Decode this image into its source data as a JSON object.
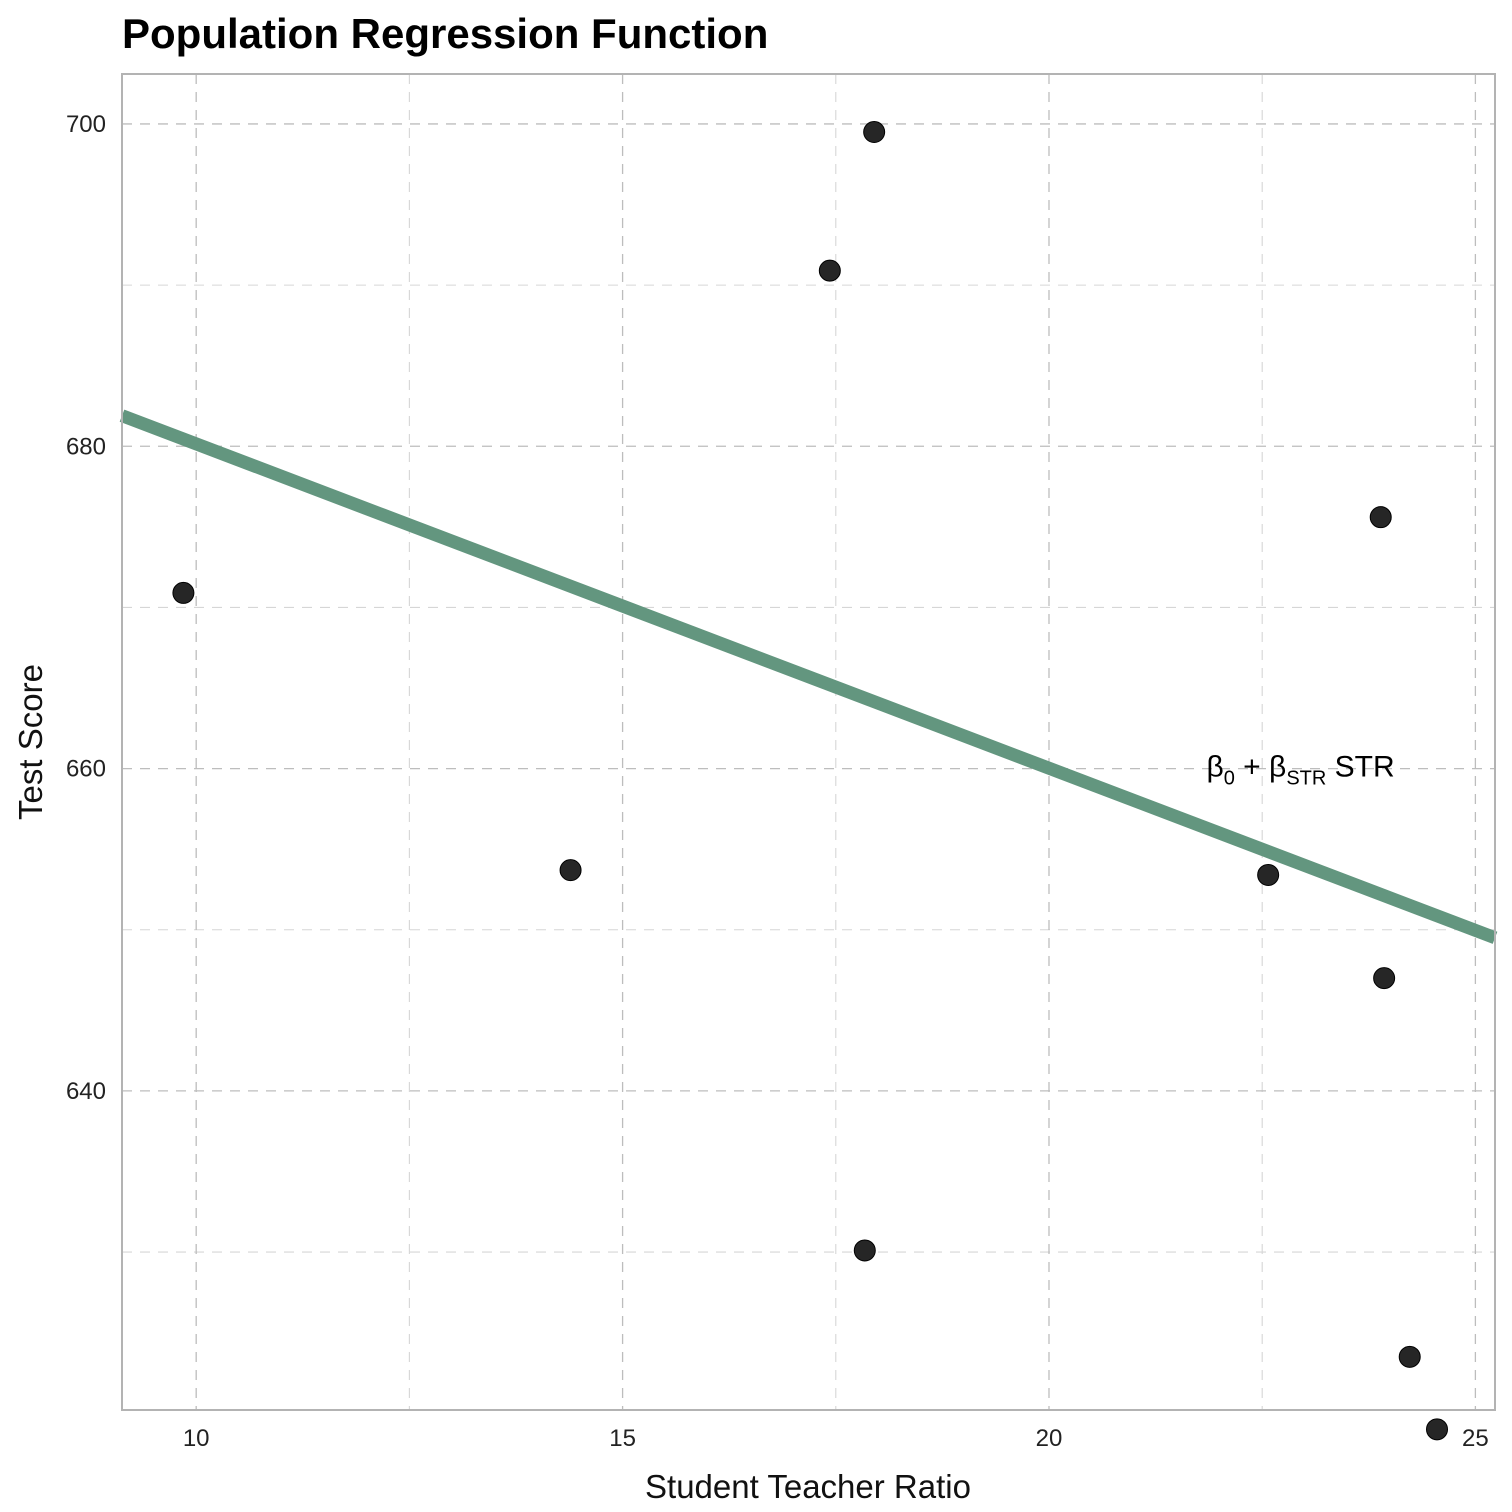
{
  "chart_data": {
    "type": "scatter",
    "title": "Population Regression Function",
    "xlabel": "Student Teacher Ratio",
    "ylabel": "Test Score",
    "xlim": [
      9.13,
      25.23
    ],
    "ylim": [
      620.2,
      703.1
    ],
    "x_ticks": [
      10,
      15,
      20,
      25
    ],
    "y_ticks": [
      640,
      660,
      680,
      700
    ],
    "x_minor_ticks": [
      12.5,
      17.5,
      22.5
    ],
    "y_minor_ticks": [
      630,
      650,
      670,
      690
    ],
    "grid": true,
    "points": [
      {
        "x": 9.85,
        "y": 670.9
      },
      {
        "x": 14.39,
        "y": 653.7
      },
      {
        "x": 17.43,
        "y": 690.9
      },
      {
        "x": 17.95,
        "y": 699.5
      },
      {
        "x": 17.84,
        "y": 630.1
      },
      {
        "x": 22.57,
        "y": 653.4
      },
      {
        "x": 23.89,
        "y": 675.6
      },
      {
        "x": 23.93,
        "y": 647.0
      },
      {
        "x": 24.23,
        "y": 623.5
      },
      {
        "x": 24.55,
        "y": 619.0
      }
    ],
    "line": {
      "x1": 9.13,
      "y1": 681.9,
      "x2": 25.23,
      "y2": 649.5,
      "color": "#63967f"
    },
    "annotation": {
      "b1": "β",
      "s1": "0",
      "op": " + ",
      "b2": "β",
      "s2": "STR",
      "tail": " STR",
      "x": 22.95,
      "y": 660
    },
    "colors": {
      "points": "#262626",
      "line": "#63967f",
      "grid": "#bdbdbd"
    }
  }
}
